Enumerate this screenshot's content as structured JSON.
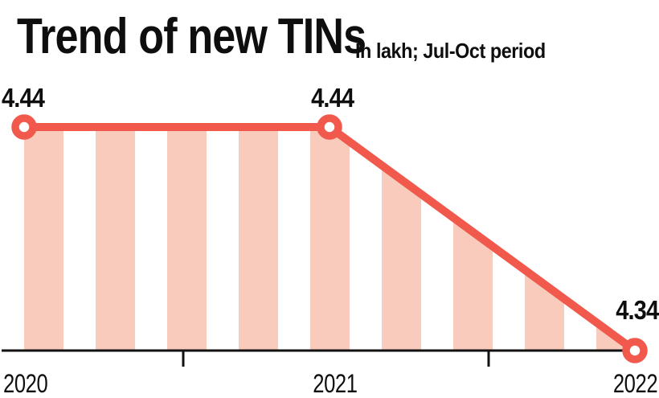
{
  "chart_data": {
    "type": "area",
    "title": "Trend of new TINs",
    "subtitle": "In lakh; Jul-Oct period",
    "unit": "lakh",
    "period": "Jul-Oct",
    "categories": [
      "2020",
      "2021",
      "2022"
    ],
    "values": [
      4.44,
      4.44,
      4.34
    ],
    "point_labels": [
      "4.44",
      "4.44",
      "4.34"
    ],
    "xlabel": "",
    "ylabel": "",
    "ylim": [
      4.34,
      4.44
    ],
    "y_axis_shown": false,
    "grid": false,
    "legend": "none",
    "fill_style": "vertical-stripes",
    "colors": {
      "line": "#f0594c",
      "marker_fill": "#ffffff",
      "area_stripe": "#f9cbbc",
      "axis": "#111111",
      "text": "#0e0e0e",
      "background": "#ffffff"
    }
  }
}
